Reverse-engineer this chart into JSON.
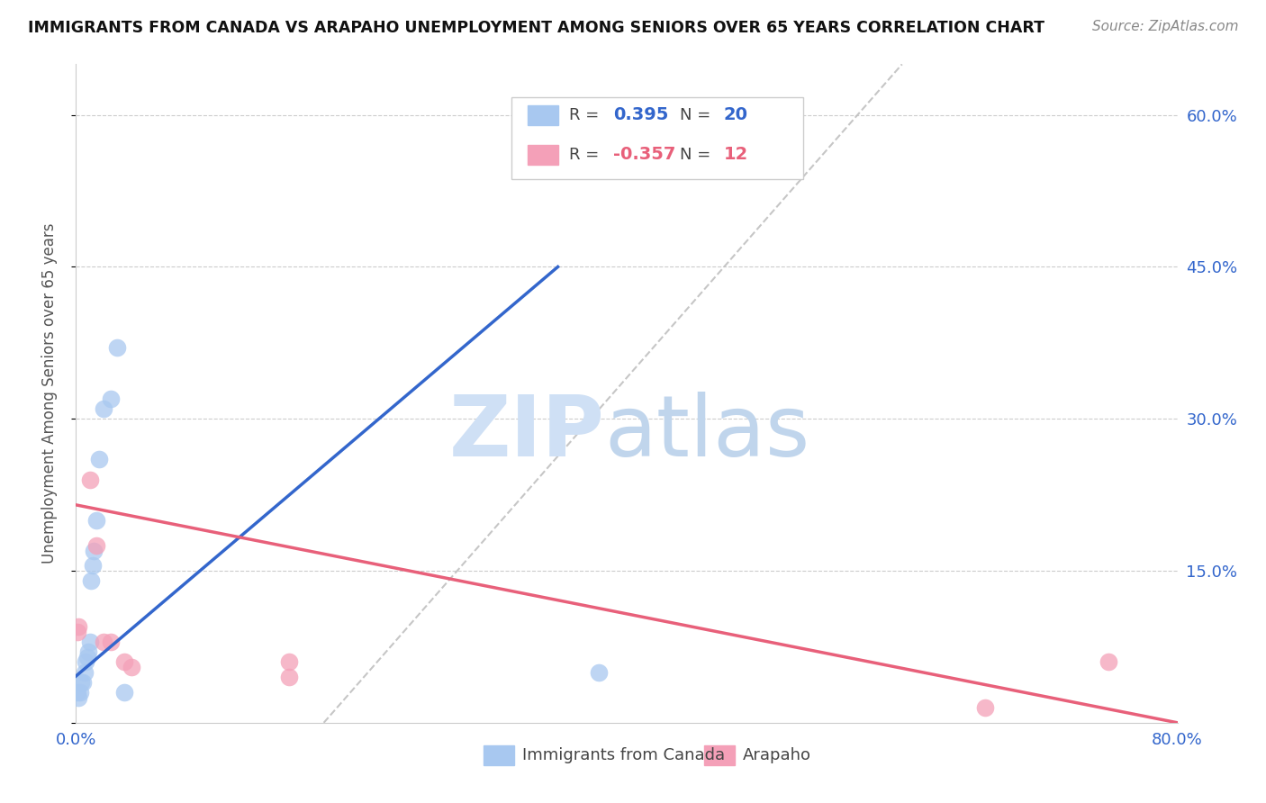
{
  "title": "IMMIGRANTS FROM CANADA VS ARAPAHO UNEMPLOYMENT AMONG SENIORS OVER 65 YEARS CORRELATION CHART",
  "source": "Source: ZipAtlas.com",
  "ylabel": "Unemployment Among Seniors over 65 years",
  "xlim": [
    0.0,
    0.8
  ],
  "ylim": [
    0.0,
    0.65
  ],
  "yticks": [
    0.0,
    0.15,
    0.3,
    0.45,
    0.6
  ],
  "ytick_labels": [
    "",
    "15.0%",
    "30.0%",
    "45.0%",
    "60.0%"
  ],
  "xticks": [
    0.0,
    0.1,
    0.2,
    0.3,
    0.4,
    0.5,
    0.6,
    0.7,
    0.8
  ],
  "xtick_labels": [
    "0.0%",
    "",
    "",
    "",
    "",
    "",
    "",
    "",
    "80.0%"
  ],
  "blue_R": "0.395",
  "blue_N": "20",
  "pink_R": "-0.357",
  "pink_N": "12",
  "blue_color": "#a8c8f0",
  "pink_color": "#f4a0b8",
  "blue_line_color": "#3366cc",
  "pink_line_color": "#e8607a",
  "trendline_color": "#c0c0c0",
  "legend_label_blue": "Immigrants from Canada",
  "legend_label_pink": "Arapaho",
  "blue_points": [
    [
      0.001,
      0.03
    ],
    [
      0.002,
      0.025
    ],
    [
      0.003,
      0.03
    ],
    [
      0.004,
      0.04
    ],
    [
      0.005,
      0.04
    ],
    [
      0.006,
      0.05
    ],
    [
      0.007,
      0.06
    ],
    [
      0.008,
      0.065
    ],
    [
      0.009,
      0.07
    ],
    [
      0.01,
      0.08
    ],
    [
      0.011,
      0.14
    ],
    [
      0.012,
      0.155
    ],
    [
      0.013,
      0.17
    ],
    [
      0.015,
      0.2
    ],
    [
      0.017,
      0.26
    ],
    [
      0.02,
      0.31
    ],
    [
      0.025,
      0.32
    ],
    [
      0.03,
      0.37
    ],
    [
      0.035,
      0.03
    ],
    [
      0.38,
      0.05
    ]
  ],
  "pink_points": [
    [
      0.001,
      0.09
    ],
    [
      0.002,
      0.095
    ],
    [
      0.01,
      0.24
    ],
    [
      0.015,
      0.175
    ],
    [
      0.02,
      0.08
    ],
    [
      0.025,
      0.08
    ],
    [
      0.035,
      0.06
    ],
    [
      0.04,
      0.055
    ],
    [
      0.155,
      0.06
    ],
    [
      0.155,
      0.045
    ],
    [
      0.66,
      0.015
    ],
    [
      0.75,
      0.06
    ]
  ],
  "blue_trend": [
    0.0,
    0.046,
    0.35,
    0.45
  ],
  "pink_trend": [
    0.0,
    0.215,
    0.8,
    0.0
  ],
  "gray_trend": [
    0.18,
    0.0,
    0.6,
    0.65
  ]
}
